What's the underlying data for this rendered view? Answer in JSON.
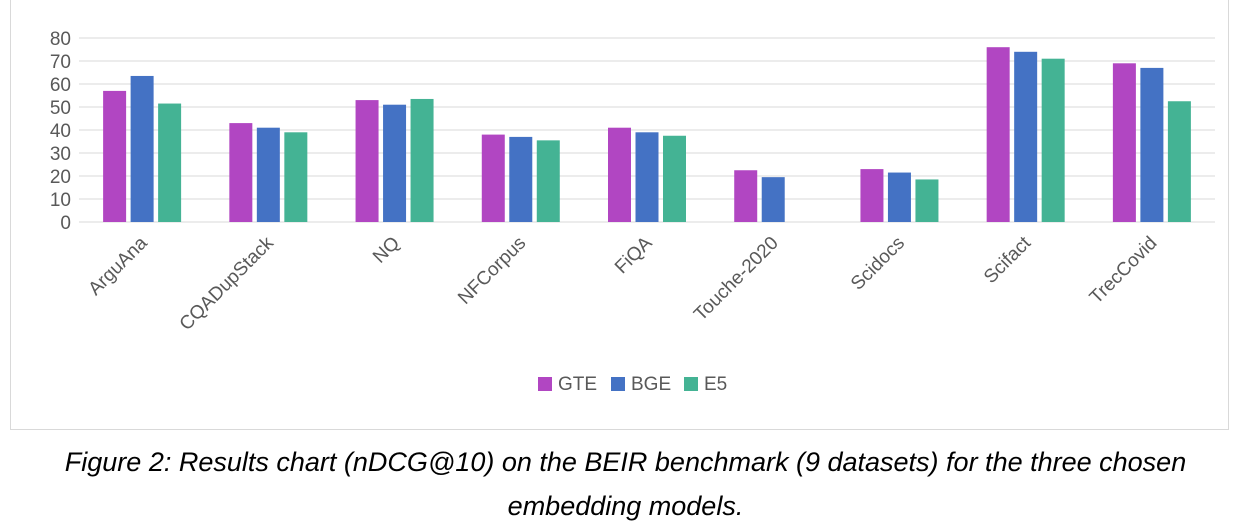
{
  "chart_data": {
    "type": "bar",
    "title": "",
    "xlabel": "",
    "ylabel": "",
    "ylim": [
      0,
      80
    ],
    "yticks": [
      0,
      10,
      20,
      30,
      40,
      50,
      60,
      70,
      80
    ],
    "grid": true,
    "legend_position": "bottom",
    "categories": [
      "ArguAna",
      "CQADupStack",
      "NQ",
      "NFCorpus",
      "FiQA",
      "Touche-2020",
      "Scidocs",
      "Scifact",
      "TrecCovid"
    ],
    "series": [
      {
        "name": "GTE",
        "color": "#b146c2",
        "values": [
          57,
          43,
          53,
          38,
          41,
          22.5,
          23,
          76,
          69
        ]
      },
      {
        "name": "BGE",
        "color": "#4472c4",
        "values": [
          63.5,
          41,
          51,
          37,
          39,
          19.5,
          21.5,
          74,
          67
        ]
      },
      {
        "name": "E5",
        "color": "#44b394",
        "values": [
          51.5,
          39,
          53.5,
          35.5,
          37.5,
          null,
          18.5,
          71,
          52.5
        ]
      }
    ]
  },
  "caption": {
    "line1": "Figure 2: Results chart (nDCG@10) on the BEIR benchmark (9 datasets) for the three chosen",
    "line2": "embedding models."
  }
}
